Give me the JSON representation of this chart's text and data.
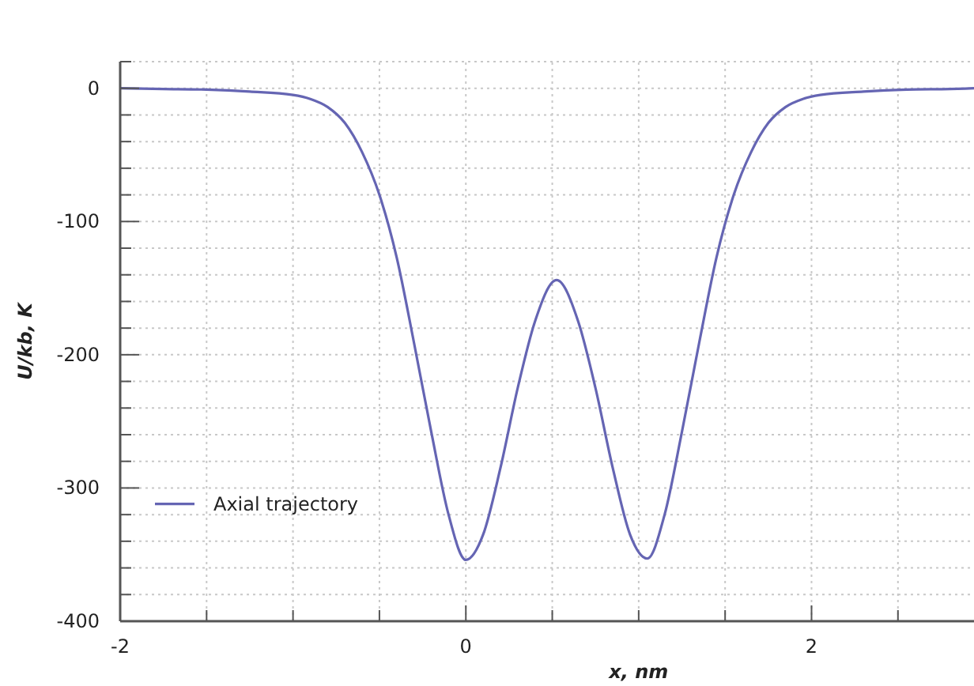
{
  "chart_data": {
    "type": "line",
    "xlabel": "x, nm",
    "ylabel": "U/kb, K",
    "xlim": [
      -2,
      2.94
    ],
    "ylim": [
      -400,
      20
    ],
    "xticks": [
      -2,
      {
        "value": -1.5,
        "label": null
      },
      {
        "value": -1,
        "label": null
      },
      {
        "value": -0.5,
        "label": null
      },
      0,
      {
        "value": 0.5,
        "label": null
      },
      {
        "value": 1,
        "label": null
      },
      {
        "value": 1.5,
        "label": null
      },
      2,
      {
        "value": 2.5,
        "label": null
      }
    ],
    "yticks": [
      -400,
      {
        "value": -380,
        "label": null
      },
      {
        "value": -360,
        "label": null
      },
      {
        "value": -340,
        "label": null
      },
      {
        "value": -320,
        "label": null
      },
      -300,
      {
        "value": -280,
        "label": null
      },
      {
        "value": -260,
        "label": null
      },
      {
        "value": -240,
        "label": null
      },
      {
        "value": -220,
        "label": null
      },
      -200,
      {
        "value": -180,
        "label": null
      },
      {
        "value": -160,
        "label": null
      },
      {
        "value": -140,
        "label": null
      },
      {
        "value": -120,
        "label": null
      },
      -100,
      {
        "value": -80,
        "label": null
      },
      {
        "value": -60,
        "label": null
      },
      {
        "value": -40,
        "label": null
      },
      {
        "value": -20,
        "label": null
      },
      0,
      {
        "value": 20,
        "label": null
      }
    ],
    "grid": true,
    "legend": "bottom left",
    "marker": "none",
    "line_style": "solid",
    "x": [
      -2,
      -1.75,
      -1.5,
      -1.25,
      -1,
      -0.9,
      -0.8,
      -0.7,
      -0.6,
      -0.5,
      -0.4,
      -0.3,
      -0.2,
      -0.1,
      0,
      0.1,
      0.2,
      0.3,
      0.4,
      0.525,
      0.65,
      0.75,
      0.85,
      0.95,
      1.05,
      1.15,
      1.25,
      1.35,
      1.45,
      1.55,
      1.65,
      1.75,
      1.85,
      1.95,
      2.05,
      2.3,
      2.55,
      2.8,
      2.94
    ],
    "series": [
      {
        "name": "Axial trajectory",
        "color": "#6565b3",
        "values": [
          0,
          -0.5,
          -1,
          -2.5,
          -5,
          -8,
          -14,
          -26,
          -48,
          -80,
          -127,
          -191,
          -258,
          -320,
          -354,
          -335,
          -285,
          -225,
          -175,
          -144,
          -175,
          -225,
          -285,
          -335,
          -353,
          -320,
          -258,
          -191,
          -127,
          -80,
          -48,
          -26,
          -14,
          -8,
          -5,
          -2.5,
          -1,
          -0.5,
          0
        ]
      }
    ]
  }
}
